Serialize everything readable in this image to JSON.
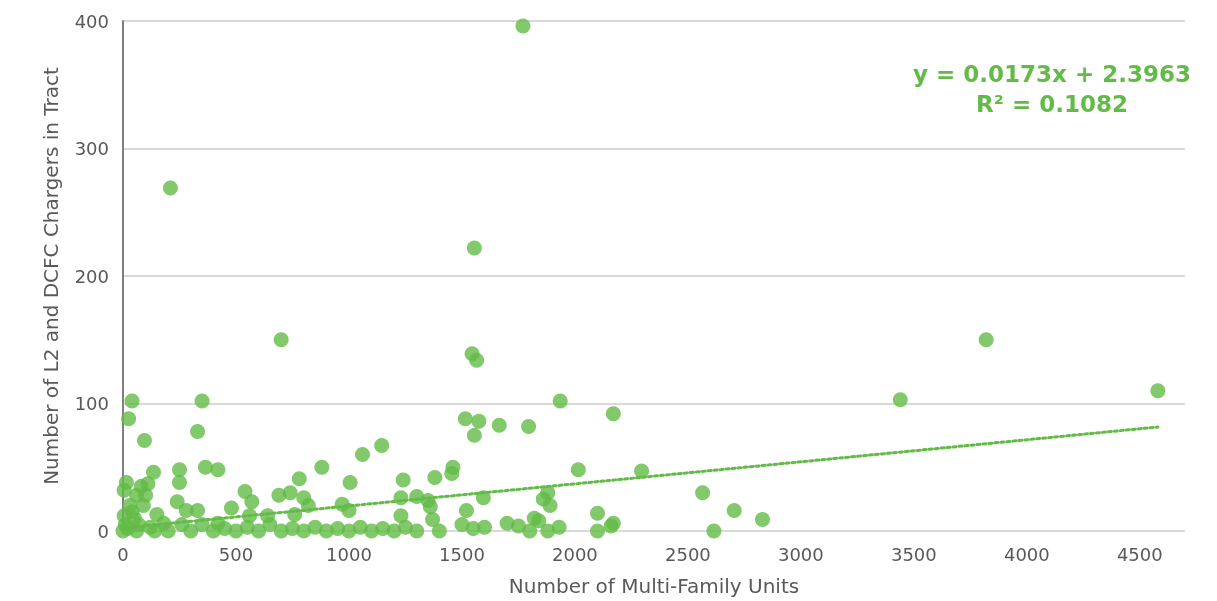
{
  "chart_data": {
    "type": "scatter",
    "xlabel": "Number of Multi-Family Units",
    "ylabel": "Number of L2 and DCFC Chargers in Tract",
    "annotations": [
      "y = 0.0173x + 2.3963",
      "R² = 0.1082"
    ],
    "xlim": [
      0,
      4700
    ],
    "xticks": [
      0,
      500,
      1000,
      1500,
      2000,
      2500,
      3000,
      3500,
      4000,
      4500
    ],
    "ylim": [
      0,
      400
    ],
    "yticks": [
      0,
      100,
      200,
      300,
      400
    ],
    "grid": "y",
    "marker": "circle",
    "series": [
      {
        "color": "#62bb46",
        "x": [
          1770,
          210,
          1555,
          700,
          1545,
          1565,
          3820,
          3440,
          4580,
          40,
          350,
          1935,
          25,
          1515,
          1575,
          2170,
          1665,
          1795,
          95,
          330,
          1555,
          1145,
          1060,
          365,
          420,
          250,
          880,
          1460,
          1455,
          2015,
          2295,
          1380,
          135,
          15,
          1005,
          250,
          780,
          1240,
          1595,
          1860,
          1880,
          2565,
          2705,
          2830,
          2615,
          2100,
          2170,
          2100,
          1930,
          1890,
          1520,
          5,
          80,
          110,
          60,
          100,
          30,
          240,
          330,
          540,
          570,
          690,
          740,
          800,
          820,
          970,
          1000,
          1300,
          1350,
          1360,
          1370,
          1230,
          1230,
          760,
          640,
          560,
          480,
          280,
          420,
          150,
          180,
          50,
          10,
          20,
          60,
          120,
          200,
          300,
          350,
          400,
          450,
          500,
          550,
          600,
          650,
          700,
          750,
          800,
          850,
          900,
          950,
          1000,
          1050,
          1100,
          1150,
          1200,
          1250,
          1300,
          1400,
          1500,
          1550,
          1600,
          1700,
          1750,
          1800,
          1820,
          1840,
          1880,
          0,
          5,
          40,
          70,
          90,
          140,
          260,
          2160
        ],
        "values": [
          396,
          269,
          222,
          150,
          139,
          134,
          150,
          103,
          110,
          102,
          102,
          102,
          88,
          88,
          86,
          92,
          83,
          82,
          71,
          78,
          75,
          67,
          60,
          50,
          48,
          48,
          50,
          50,
          45,
          48,
          47,
          42,
          46,
          38,
          38,
          38,
          41,
          40,
          26,
          25,
          30,
          30,
          16,
          9,
          0,
          14,
          6,
          0,
          3,
          20,
          16,
          32,
          35,
          37,
          28,
          28,
          20,
          23,
          16,
          31,
          23,
          28,
          30,
          26,
          20,
          21,
          16,
          27,
          24,
          19,
          9,
          26,
          12,
          13,
          12,
          12,
          18,
          16,
          6,
          13,
          6,
          10,
          5,
          2,
          0,
          3,
          0,
          0,
          5,
          0,
          2,
          0,
          3,
          0,
          5,
          0,
          2,
          0,
          3,
          0,
          2,
          0,
          3,
          0,
          2,
          0,
          3,
          0,
          0,
          5,
          2,
          3,
          6,
          4,
          0,
          10,
          8,
          0,
          0,
          12,
          15,
          5,
          20,
          0,
          5,
          4
        ]
      },
      {
        "type": "line",
        "color": "#62bb46",
        "line_style": "dotted",
        "marker": "none",
        "x": [
          0,
          4580
        ],
        "values": [
          2.4,
          81.6
        ]
      }
    ]
  }
}
